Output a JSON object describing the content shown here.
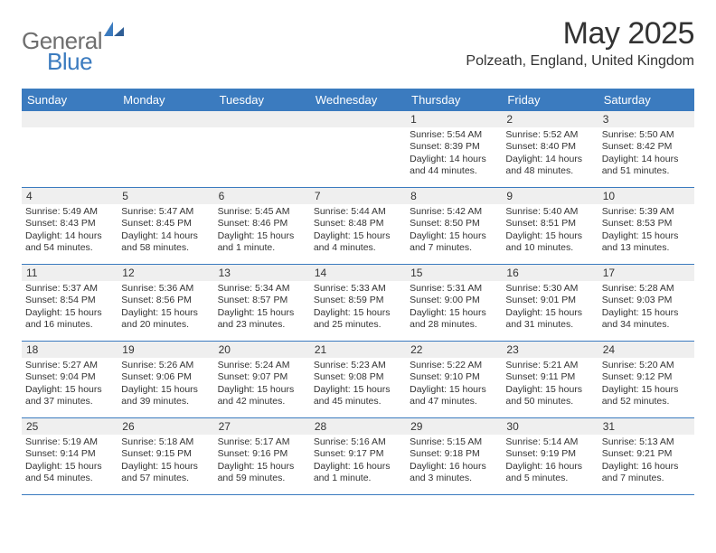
{
  "logo": {
    "general": "General",
    "blue": "Blue"
  },
  "title": "May 2025",
  "location": "Polzeath, England, United Kingdom",
  "colors": {
    "header_bg": "#3b7bbf",
    "header_text": "#ffffff",
    "daynum_bg": "#efefef",
    "border": "#3b7bbf",
    "text": "#333333",
    "logo_gray": "#6f6f6f",
    "logo_blue": "#3b7bbf",
    "page_bg": "#ffffff"
  },
  "weekdays": [
    "Sunday",
    "Monday",
    "Tuesday",
    "Wednesday",
    "Thursday",
    "Friday",
    "Saturday"
  ],
  "weeks": [
    [
      {
        "num": "",
        "sunrise": "",
        "sunset": "",
        "daylight": ""
      },
      {
        "num": "",
        "sunrise": "",
        "sunset": "",
        "daylight": ""
      },
      {
        "num": "",
        "sunrise": "",
        "sunset": "",
        "daylight": ""
      },
      {
        "num": "",
        "sunrise": "",
        "sunset": "",
        "daylight": ""
      },
      {
        "num": "1",
        "sunrise": "Sunrise: 5:54 AM",
        "sunset": "Sunset: 8:39 PM",
        "daylight": "Daylight: 14 hours and 44 minutes."
      },
      {
        "num": "2",
        "sunrise": "Sunrise: 5:52 AM",
        "sunset": "Sunset: 8:40 PM",
        "daylight": "Daylight: 14 hours and 48 minutes."
      },
      {
        "num": "3",
        "sunrise": "Sunrise: 5:50 AM",
        "sunset": "Sunset: 8:42 PM",
        "daylight": "Daylight: 14 hours and 51 minutes."
      }
    ],
    [
      {
        "num": "4",
        "sunrise": "Sunrise: 5:49 AM",
        "sunset": "Sunset: 8:43 PM",
        "daylight": "Daylight: 14 hours and 54 minutes."
      },
      {
        "num": "5",
        "sunrise": "Sunrise: 5:47 AM",
        "sunset": "Sunset: 8:45 PM",
        "daylight": "Daylight: 14 hours and 58 minutes."
      },
      {
        "num": "6",
        "sunrise": "Sunrise: 5:45 AM",
        "sunset": "Sunset: 8:46 PM",
        "daylight": "Daylight: 15 hours and 1 minute."
      },
      {
        "num": "7",
        "sunrise": "Sunrise: 5:44 AM",
        "sunset": "Sunset: 8:48 PM",
        "daylight": "Daylight: 15 hours and 4 minutes."
      },
      {
        "num": "8",
        "sunrise": "Sunrise: 5:42 AM",
        "sunset": "Sunset: 8:50 PM",
        "daylight": "Daylight: 15 hours and 7 minutes."
      },
      {
        "num": "9",
        "sunrise": "Sunrise: 5:40 AM",
        "sunset": "Sunset: 8:51 PM",
        "daylight": "Daylight: 15 hours and 10 minutes."
      },
      {
        "num": "10",
        "sunrise": "Sunrise: 5:39 AM",
        "sunset": "Sunset: 8:53 PM",
        "daylight": "Daylight: 15 hours and 13 minutes."
      }
    ],
    [
      {
        "num": "11",
        "sunrise": "Sunrise: 5:37 AM",
        "sunset": "Sunset: 8:54 PM",
        "daylight": "Daylight: 15 hours and 16 minutes."
      },
      {
        "num": "12",
        "sunrise": "Sunrise: 5:36 AM",
        "sunset": "Sunset: 8:56 PM",
        "daylight": "Daylight: 15 hours and 20 minutes."
      },
      {
        "num": "13",
        "sunrise": "Sunrise: 5:34 AM",
        "sunset": "Sunset: 8:57 PM",
        "daylight": "Daylight: 15 hours and 23 minutes."
      },
      {
        "num": "14",
        "sunrise": "Sunrise: 5:33 AM",
        "sunset": "Sunset: 8:59 PM",
        "daylight": "Daylight: 15 hours and 25 minutes."
      },
      {
        "num": "15",
        "sunrise": "Sunrise: 5:31 AM",
        "sunset": "Sunset: 9:00 PM",
        "daylight": "Daylight: 15 hours and 28 minutes."
      },
      {
        "num": "16",
        "sunrise": "Sunrise: 5:30 AM",
        "sunset": "Sunset: 9:01 PM",
        "daylight": "Daylight: 15 hours and 31 minutes."
      },
      {
        "num": "17",
        "sunrise": "Sunrise: 5:28 AM",
        "sunset": "Sunset: 9:03 PM",
        "daylight": "Daylight: 15 hours and 34 minutes."
      }
    ],
    [
      {
        "num": "18",
        "sunrise": "Sunrise: 5:27 AM",
        "sunset": "Sunset: 9:04 PM",
        "daylight": "Daylight: 15 hours and 37 minutes."
      },
      {
        "num": "19",
        "sunrise": "Sunrise: 5:26 AM",
        "sunset": "Sunset: 9:06 PM",
        "daylight": "Daylight: 15 hours and 39 minutes."
      },
      {
        "num": "20",
        "sunrise": "Sunrise: 5:24 AM",
        "sunset": "Sunset: 9:07 PM",
        "daylight": "Daylight: 15 hours and 42 minutes."
      },
      {
        "num": "21",
        "sunrise": "Sunrise: 5:23 AM",
        "sunset": "Sunset: 9:08 PM",
        "daylight": "Daylight: 15 hours and 45 minutes."
      },
      {
        "num": "22",
        "sunrise": "Sunrise: 5:22 AM",
        "sunset": "Sunset: 9:10 PM",
        "daylight": "Daylight: 15 hours and 47 minutes."
      },
      {
        "num": "23",
        "sunrise": "Sunrise: 5:21 AM",
        "sunset": "Sunset: 9:11 PM",
        "daylight": "Daylight: 15 hours and 50 minutes."
      },
      {
        "num": "24",
        "sunrise": "Sunrise: 5:20 AM",
        "sunset": "Sunset: 9:12 PM",
        "daylight": "Daylight: 15 hours and 52 minutes."
      }
    ],
    [
      {
        "num": "25",
        "sunrise": "Sunrise: 5:19 AM",
        "sunset": "Sunset: 9:14 PM",
        "daylight": "Daylight: 15 hours and 54 minutes."
      },
      {
        "num": "26",
        "sunrise": "Sunrise: 5:18 AM",
        "sunset": "Sunset: 9:15 PM",
        "daylight": "Daylight: 15 hours and 57 minutes."
      },
      {
        "num": "27",
        "sunrise": "Sunrise: 5:17 AM",
        "sunset": "Sunset: 9:16 PM",
        "daylight": "Daylight: 15 hours and 59 minutes."
      },
      {
        "num": "28",
        "sunrise": "Sunrise: 5:16 AM",
        "sunset": "Sunset: 9:17 PM",
        "daylight": "Daylight: 16 hours and 1 minute."
      },
      {
        "num": "29",
        "sunrise": "Sunrise: 5:15 AM",
        "sunset": "Sunset: 9:18 PM",
        "daylight": "Daylight: 16 hours and 3 minutes."
      },
      {
        "num": "30",
        "sunrise": "Sunrise: 5:14 AM",
        "sunset": "Sunset: 9:19 PM",
        "daylight": "Daylight: 16 hours and 5 minutes."
      },
      {
        "num": "31",
        "sunrise": "Sunrise: 5:13 AM",
        "sunset": "Sunset: 9:21 PM",
        "daylight": "Daylight: 16 hours and 7 minutes."
      }
    ]
  ]
}
